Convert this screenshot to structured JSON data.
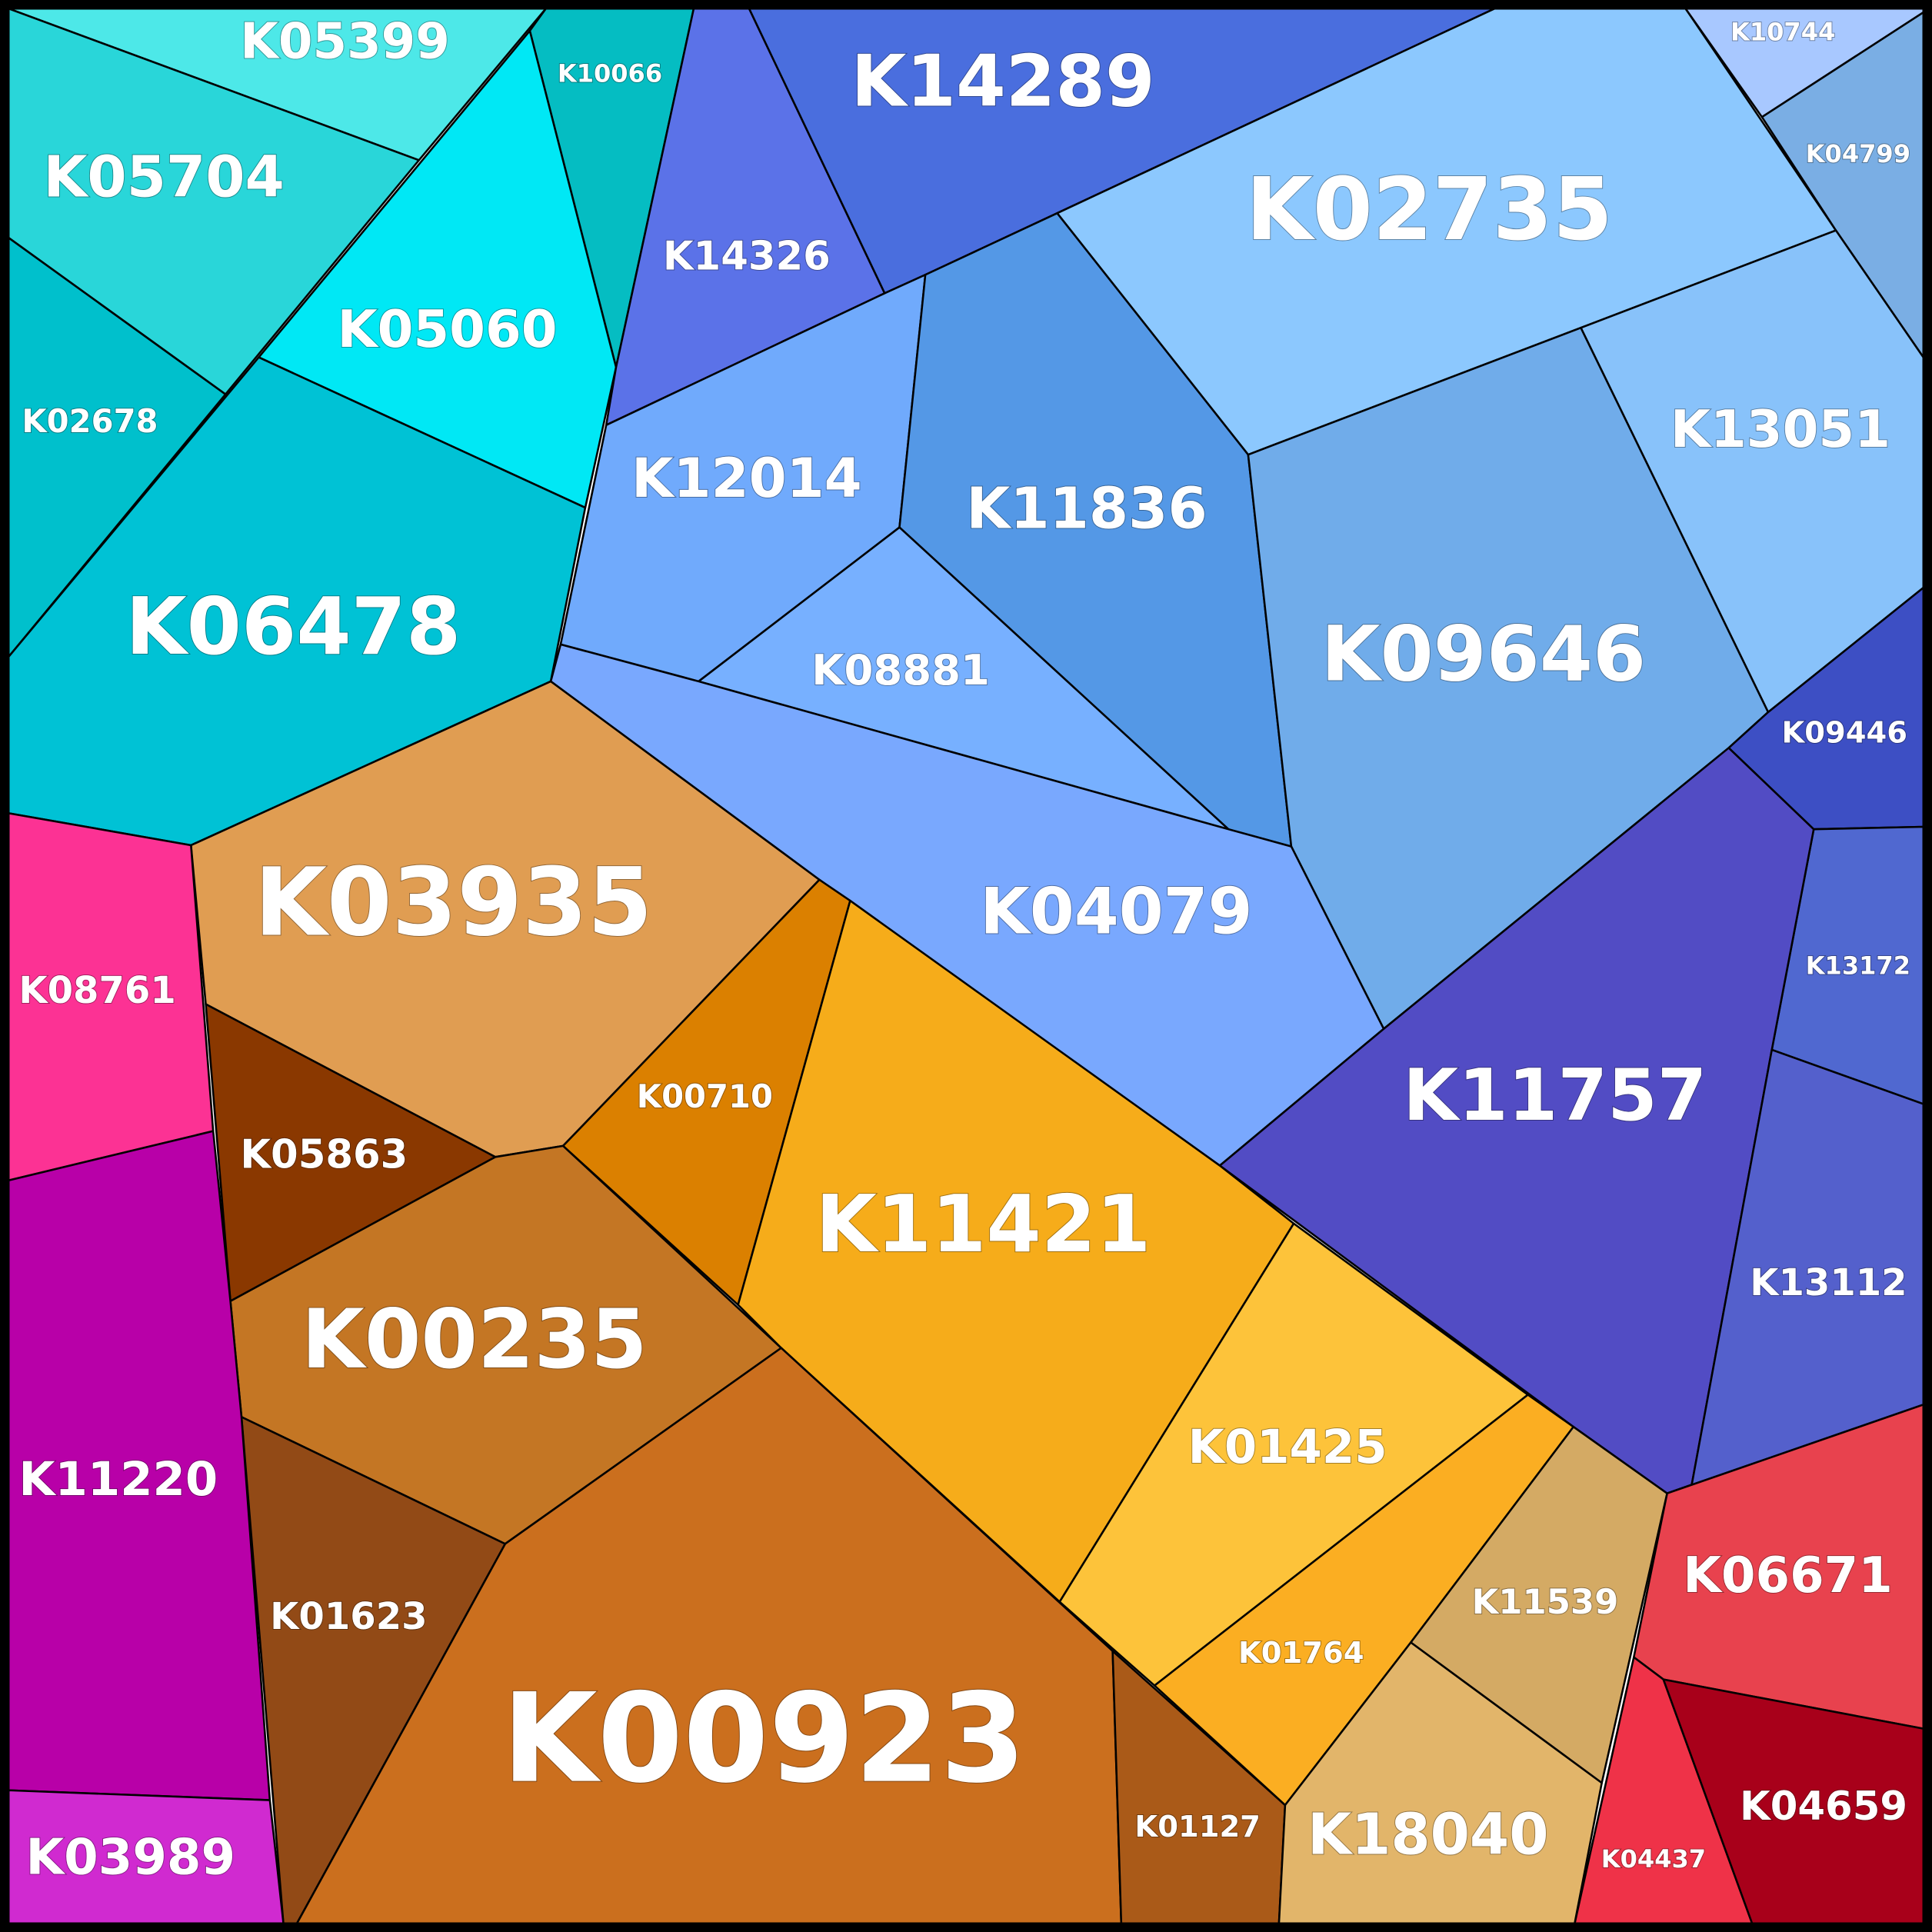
{
  "cells": [
    {
      "label": "K05399"
    },
    {
      "label": "K05704"
    },
    {
      "label": "K10066"
    },
    {
      "label": "K05060"
    },
    {
      "label": "K02678"
    },
    {
      "label": "K06478"
    },
    {
      "label": "K14326"
    },
    {
      "label": "K14289"
    },
    {
      "label": "K02735"
    },
    {
      "label": "K10744"
    },
    {
      "label": "K04799"
    },
    {
      "label": "K13051"
    },
    {
      "label": "K12014"
    },
    {
      "label": "K11836"
    },
    {
      "label": "K08881"
    },
    {
      "label": "K09646"
    },
    {
      "label": "K04079"
    },
    {
      "label": "K09446"
    },
    {
      "label": "K13172"
    },
    {
      "label": "K11757"
    },
    {
      "label": "K13112"
    },
    {
      "label": "K06671"
    },
    {
      "label": "K04437"
    },
    {
      "label": "K04659"
    },
    {
      "label": "K03935"
    },
    {
      "label": "K05863"
    },
    {
      "label": "K00710"
    },
    {
      "label": "K11421"
    },
    {
      "label": "K00235"
    },
    {
      "label": "K01623"
    },
    {
      "label": "K00923"
    },
    {
      "label": "K01127"
    },
    {
      "label": "K01425"
    },
    {
      "label": "K01764"
    },
    {
      "label": "K11539"
    },
    {
      "label": "K18040"
    },
    {
      "label": "K08761"
    },
    {
      "label": "K11220"
    },
    {
      "label": "K03989"
    }
  ]
}
